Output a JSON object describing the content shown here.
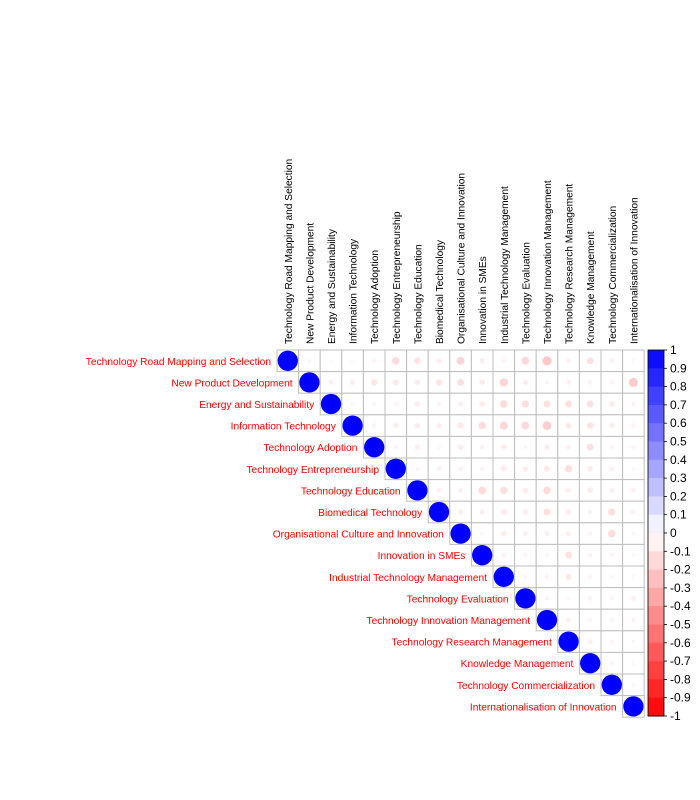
{
  "chart_data": {
    "type": "heatmap",
    "variables": [
      "Technology Road Mapping and Selection",
      "New Product Development",
      "Energy and Sustainability",
      "Information Technology",
      "Technology Adoption",
      "Technology Entrepreneurship",
      "Technology Education",
      "Biomedical Technology",
      "Organisational Culture and Innovation",
      "Innovation in SMEs",
      "Industrial Technology Management",
      "Technology Evaluation",
      "Technology Innovation Management",
      "Technology Research Management",
      "Knowledge Management",
      "Technology Commercialization",
      "Internationalisation of Innovation"
    ],
    "matrix_upper": [
      [
        1,
        -0.04,
        -0.03,
        -0.03,
        -0.05,
        -0.14,
        -0.11,
        -0.07,
        -0.16,
        -0.07,
        -0.05,
        -0.15,
        -0.21,
        -0.06,
        -0.12,
        -0.06,
        -0.04
      ],
      [
        1,
        -0.06,
        -0.07,
        -0.1,
        -0.09,
        -0.08,
        -0.1,
        -0.12,
        -0.08,
        -0.17,
        -0.07,
        -0.04,
        -0.06,
        -0.05,
        -0.05,
        -0.2
      ],
      [
        1,
        -0.04,
        -0.05,
        -0.05,
        -0.07,
        -0.05,
        -0.06,
        -0.08,
        -0.14,
        -0.13,
        -0.12,
        -0.12,
        -0.12,
        -0.08,
        -0.05
      ],
      [
        1,
        -0.05,
        -0.07,
        -0.08,
        -0.07,
        -0.09,
        -0.14,
        -0.16,
        -0.15,
        -0.19,
        -0.09,
        -0.11,
        -0.07,
        -0.05
      ],
      [
        1,
        -0.05,
        -0.07,
        -0.04,
        -0.08,
        -0.06,
        -0.07,
        -0.04,
        -0.07,
        -0.06,
        -0.12,
        -0.05,
        -0.05
      ],
      [
        1,
        -0.05,
        -0.06,
        -0.06,
        -0.05,
        -0.08,
        -0.07,
        -0.09,
        -0.13,
        -0.07,
        -0.06,
        -0.04
      ],
      [
        1,
        -0.06,
        -0.06,
        -0.14,
        -0.13,
        -0.08,
        -0.14,
        -0.06,
        -0.08,
        -0.06,
        -0.06
      ],
      [
        1,
        -0.07,
        -0.07,
        -0.08,
        -0.07,
        -0.13,
        -0.07,
        -0.05,
        -0.13,
        -0.06
      ],
      [
        1,
        -0.04,
        -0.08,
        -0.06,
        -0.06,
        -0.06,
        -0.05,
        -0.14,
        -0.04
      ],
      [
        1,
        -0.05,
        -0.04,
        -0.04,
        -0.12,
        -0.05,
        -0.05,
        -0.04
      ],
      [
        1,
        -0.04,
        -0.05,
        -0.09,
        -0.05,
        -0.04,
        -0.04
      ],
      [
        1,
        -0.05,
        -0.04,
        -0.05,
        -0.04,
        -0.06
      ],
      [
        1,
        -0.06,
        -0.04,
        -0.05,
        -0.05
      ],
      [
        1,
        -0.06,
        -0.04,
        -0.04
      ],
      [
        1,
        -0.05,
        -0.04
      ],
      [
        1,
        -0.04
      ],
      [
        1
      ]
    ],
    "colorbar": {
      "ticks": [
        "1",
        "0.9",
        "0.8",
        "0.7",
        "0.6",
        "0.5",
        "0.4",
        "0.3",
        "0.2",
        "0.1",
        "0",
        "-0.1",
        "-0.2",
        "-0.3",
        "-0.4",
        "-0.5",
        "-0.6",
        "-0.7",
        "-0.8",
        "-0.9",
        "-1"
      ],
      "high_color": "#0000ff",
      "mid_color": "#ffffff",
      "low_color": "#ff0000"
    },
    "label_color": "#ff0000",
    "grid_color": "#bebebe",
    "title": "",
    "xlabel": "",
    "ylabel": ""
  }
}
